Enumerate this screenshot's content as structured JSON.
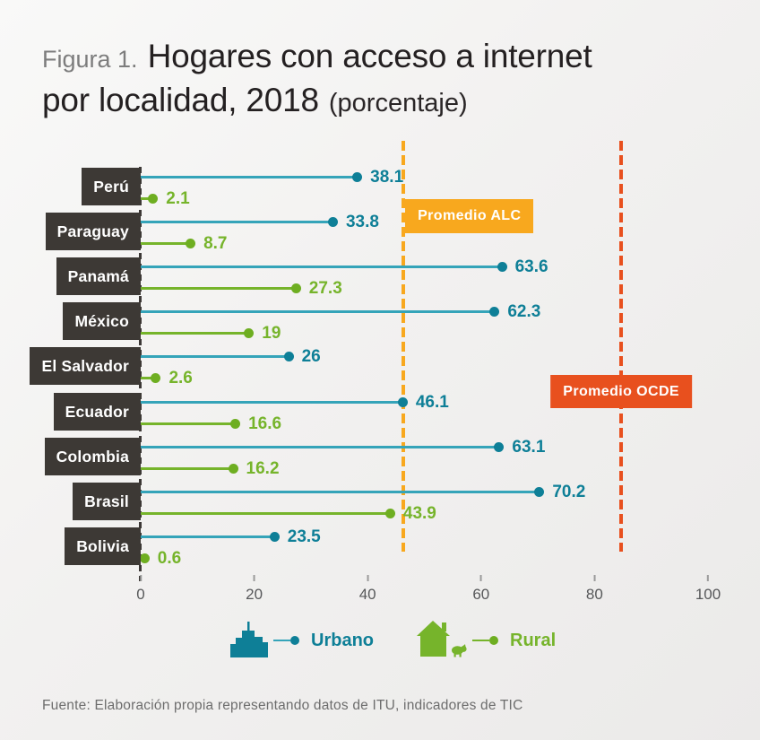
{
  "page": {
    "figure_label": "Figura 1.",
    "title_line1": "Hogares con acceso a internet",
    "title_line2": "por localidad, 2018",
    "title_suffix": "(porcentaje)",
    "source": "Fuente: Elaboración propia representando datos de ITU, indicadores de TIC"
  },
  "colors": {
    "urbano": "#0e7f97",
    "urbano_line": "#35a4b9",
    "rural": "#76b42b",
    "rural_dot": "#6eae21",
    "alc": "#f8a81e",
    "ocde": "#e8501e",
    "label_box": "#3d3935"
  },
  "chart_data": {
    "type": "bar",
    "subtype": "horizontal-lollipop",
    "title": "Hogares con acceso a internet por localidad, 2018 (porcentaje)",
    "xlabel": "porcentaje",
    "xlim": [
      0,
      100
    ],
    "x_ticks": [
      0,
      20,
      40,
      60,
      80,
      100
    ],
    "legend": [
      "Urbano",
      "Rural"
    ],
    "countries": [
      {
        "name": "Perú",
        "urbano": 38.1,
        "rural": 2.1
      },
      {
        "name": "Paraguay",
        "urbano": 33.8,
        "rural": 8.7
      },
      {
        "name": "Panamá",
        "urbano": 63.6,
        "rural": 27.3
      },
      {
        "name": "México",
        "urbano": 62.3,
        "rural": 19
      },
      {
        "name": "El Salvador",
        "urbano": 26,
        "rural": 2.6
      },
      {
        "name": "Ecuador",
        "urbano": 46.1,
        "rural": 16.6
      },
      {
        "name": "Colombia",
        "urbano": 63.1,
        "rural": 16.2
      },
      {
        "name": "Brasil",
        "urbano": 70.2,
        "rural": 43.9
      },
      {
        "name": "Bolivia",
        "urbano": 23.5,
        "rural": 0.6
      }
    ],
    "reference_lines": [
      {
        "label": "Promedio ALC",
        "value": 46.3
      },
      {
        "label": "Promedio OCDE",
        "value": 84.7
      }
    ]
  }
}
